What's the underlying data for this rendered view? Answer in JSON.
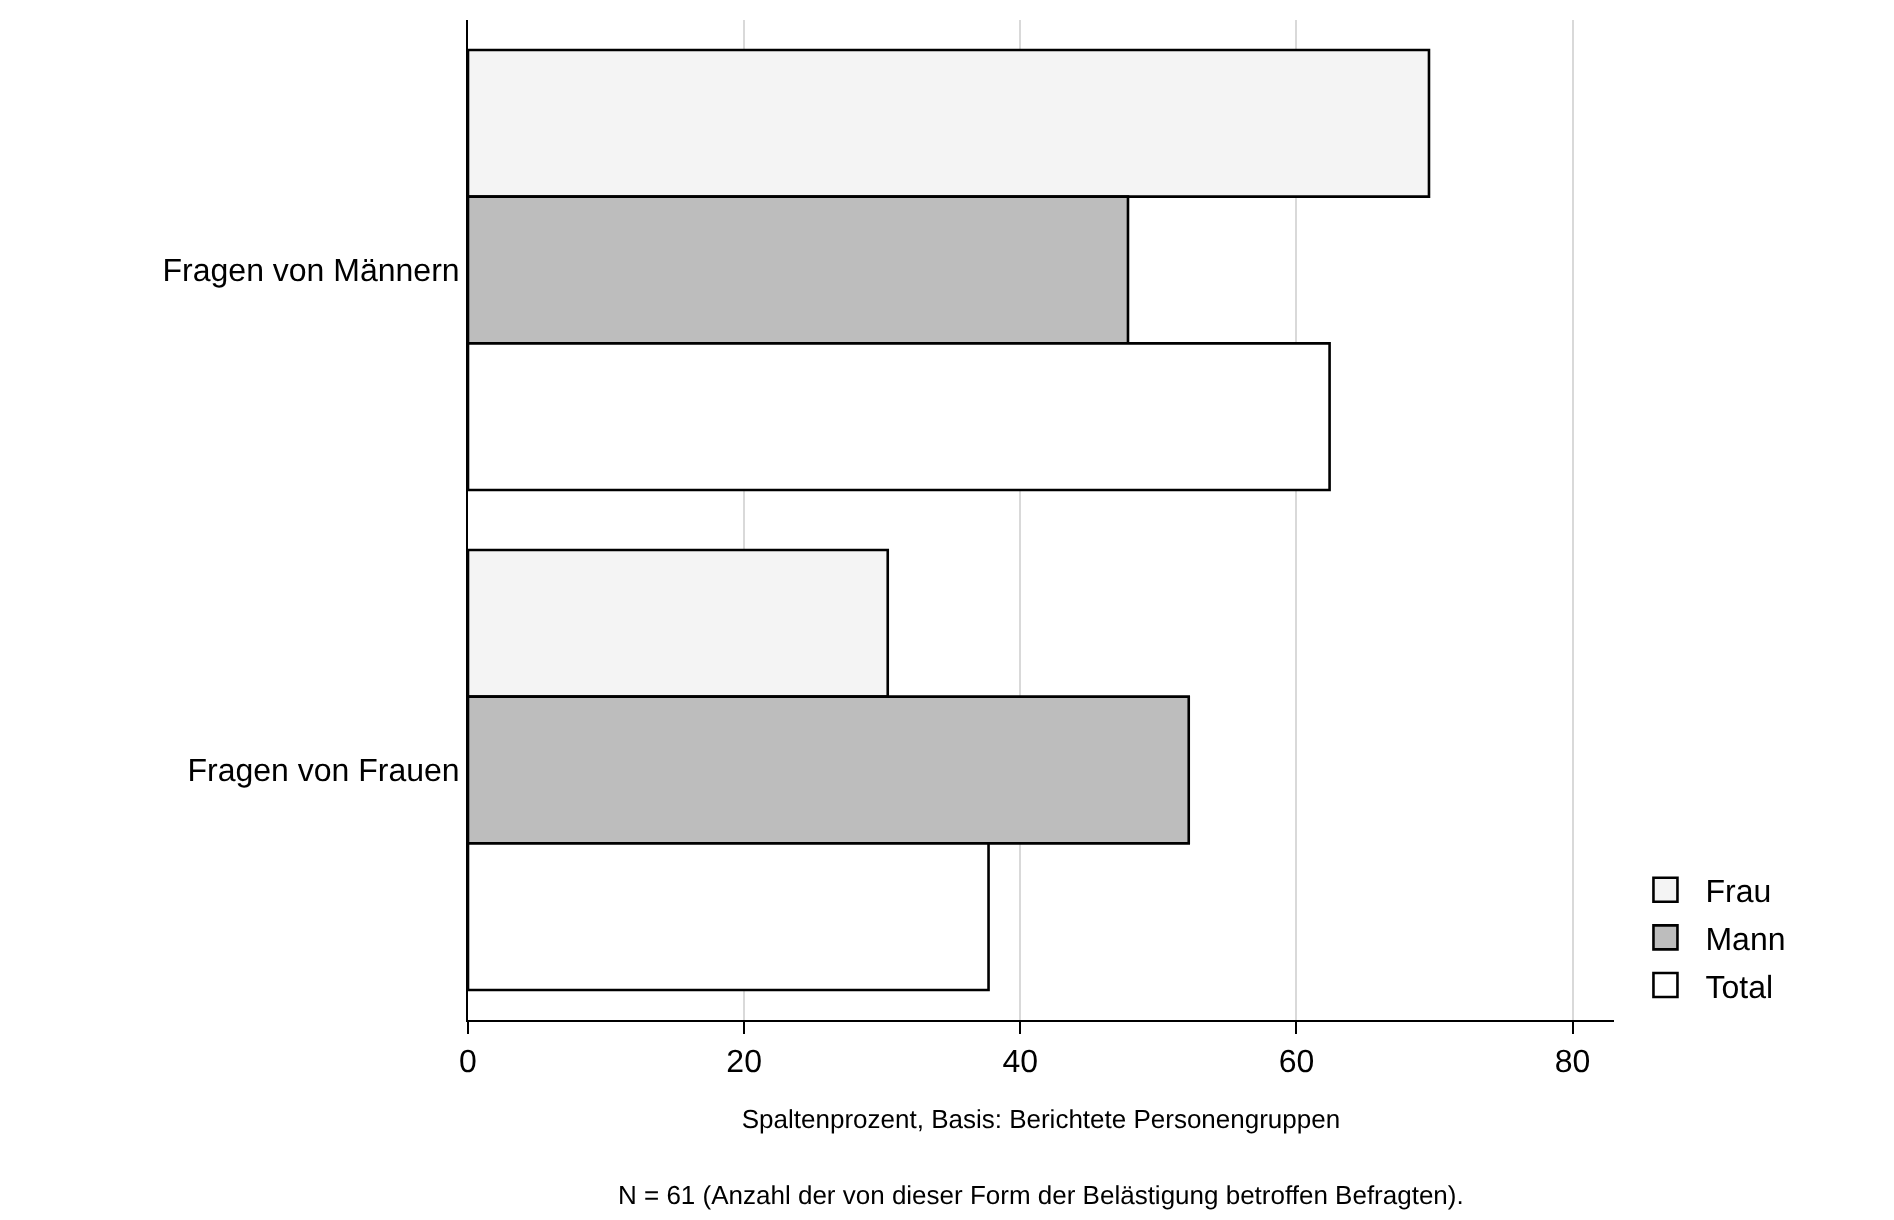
{
  "chart_data": {
    "type": "bar",
    "orientation": "horizontal",
    "categories": [
      "Fragen von Männern",
      "Fragen von Frauen"
    ],
    "series": [
      {
        "name": "Frau",
        "color": "#f4f4f4",
        "values": [
          69.6,
          30.4
        ]
      },
      {
        "name": "Mann",
        "color": "#bdbdbd",
        "values": [
          47.8,
          52.2
        ]
      },
      {
        "name": "Total",
        "color": "#ffffff",
        "values": [
          62.4,
          37.7
        ]
      }
    ],
    "xlabel": "Spaltenprozent, Basis: Berichtete Personengruppen",
    "xlim": [
      0,
      83
    ],
    "xticks": [
      0,
      20,
      40,
      60,
      80
    ],
    "grid": "x",
    "legend": "bottom right",
    "annotations": [
      "N = 61 (Anzahl der von dieser Form der Belästigung betroffen Befragten)."
    ]
  }
}
